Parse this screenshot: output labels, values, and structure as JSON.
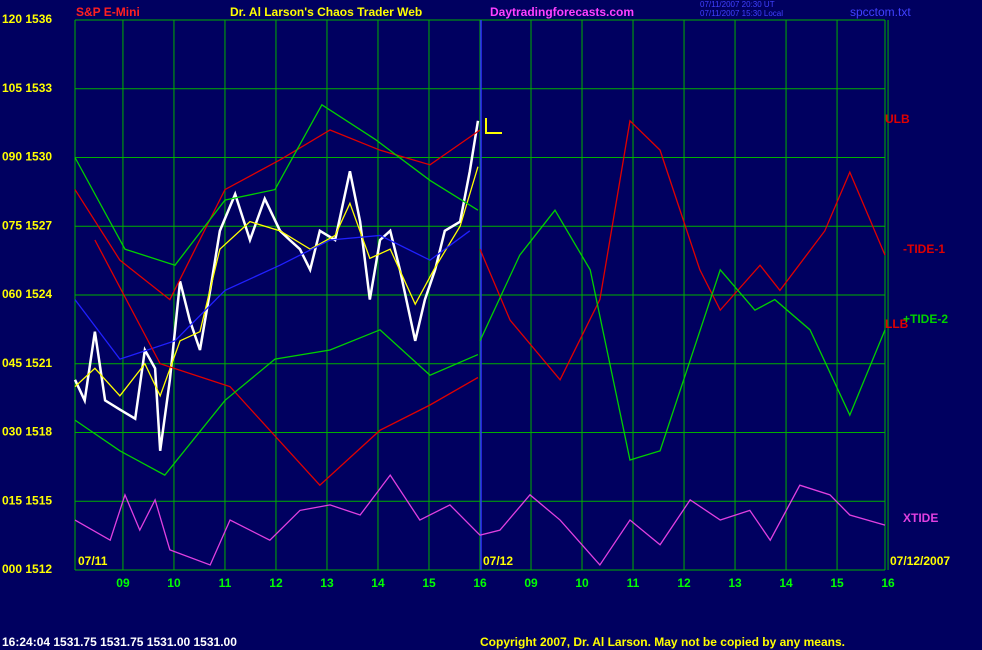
{
  "chart_data": {
    "type": "line",
    "instrument": "S&P E-Mini",
    "title": "Dr. Al Larson's Chaos Trader Web",
    "site": "Daytradingforecasts.com",
    "timestamps": [
      "07/11/2007 20:30 UT",
      "07/11/2007 15:30 Local"
    ],
    "file": "spcctom.txt",
    "date_labels": [
      "07/11",
      "07/12",
      "07/12/2007"
    ],
    "status": "16:24:04  1531.75  1531.75  1531.00  1531.00",
    "copyright": "Copyright 2007, Dr. Al Larson. May not be copied by any means.",
    "grid": true,
    "grid_color": "#00b000",
    "ylim": [
      0,
      120
    ],
    "yticks": [
      {
        "value": 120,
        "label": "120  1536"
      },
      {
        "value": 105,
        "label": "105  1533"
      },
      {
        "value": 90,
        "label": "090  1530"
      },
      {
        "value": 75,
        "label": "075  1527"
      },
      {
        "value": 60,
        "label": "060  1524"
      },
      {
        "value": 45,
        "label": "045  1521"
      },
      {
        "value": 30,
        "label": "030  1518"
      },
      {
        "value": 15,
        "label": "015  1515"
      },
      {
        "value": 0,
        "label": "000  1512"
      }
    ],
    "xlim": [
      0.06,
      15.94
    ],
    "xticks": [
      {
        "value": 1,
        "label": "09"
      },
      {
        "value": 2,
        "label": "10"
      },
      {
        "value": 3,
        "label": "11"
      },
      {
        "value": 4,
        "label": "12"
      },
      {
        "value": 5,
        "label": "13"
      },
      {
        "value": 6,
        "label": "14"
      },
      {
        "value": 7,
        "label": "15"
      },
      {
        "value": 8,
        "label": "16"
      },
      {
        "value": 9,
        "label": "09"
      },
      {
        "value": 10,
        "label": "10"
      },
      {
        "value": 11,
        "label": "11"
      },
      {
        "value": 12,
        "label": "12"
      },
      {
        "value": 13,
        "label": "13"
      },
      {
        "value": 14,
        "label": "14"
      },
      {
        "value": 15,
        "label": "15"
      },
      {
        "value": 16,
        "label": "16"
      }
    ],
    "series": [
      {
        "color": "#ffffff",
        "x": [
          0.06,
          0.25,
          0.45,
          0.65,
          0.94,
          1.24,
          1.43,
          1.63,
          1.73,
          1.92,
          2.12,
          2.31,
          2.51,
          2.71,
          2.9,
          3.2,
          3.49,
          3.78,
          4.08,
          4.27,
          4.47,
          4.67,
          4.86,
          5.16,
          5.45,
          5.65,
          5.84,
          6.04,
          6.24,
          6.43,
          6.73,
          6.92,
          7.12,
          7.31,
          7.61,
          7.8,
          7.96
        ],
        "values": [
          41.5,
          37,
          52,
          37,
          35,
          33,
          48,
          44,
          26,
          41.5,
          63,
          54.5,
          48,
          61,
          74,
          82,
          72,
          81,
          74,
          72,
          70,
          65.5,
          74,
          72,
          87,
          76,
          59,
          72,
          74,
          65.5,
          50,
          59,
          65.5,
          74,
          76,
          87,
          98
        ]
      },
      {
        "color": "#ffff00",
        "x": [
          0.06,
          0.45,
          0.94,
          1.43,
          1.73,
          2.12,
          2.51,
          2.9,
          3.49,
          4.08,
          4.67,
          5.16,
          5.45,
          5.84,
          6.24,
          6.73,
          7.12,
          7.61,
          7.96
        ],
        "values": [
          40,
          44,
          38,
          45,
          38,
          50,
          52,
          70,
          76,
          74,
          70,
          73,
          80,
          68,
          70,
          58,
          66,
          75,
          88
        ]
      },
      {
        "color": "#2020ff",
        "x": [
          0.06,
          0.94,
          2.02,
          3.0,
          4.08,
          5.06,
          6.04,
          7.02,
          7.8
        ],
        "values": [
          59,
          46,
          50,
          61,
          66.5,
          72,
          73,
          67.6,
          74
        ]
      },
      {
        "name": "ULB",
        "color": "#e00000",
        "x": [
          0.06,
          0.94,
          1.92,
          3.0,
          4.08,
          5.06,
          6.04,
          7.02,
          8.0
        ],
        "values": [
          83,
          67.6,
          59,
          83,
          89.5,
          96,
          91.6,
          88.4,
          96
        ]
      },
      {
        "name": "LLB",
        "color": "#e00000",
        "x": [
          0.45,
          1.73,
          3.1,
          4.86,
          6.04,
          7.02,
          7.96
        ],
        "values": [
          72,
          45,
          40,
          18.5,
          30.5,
          36,
          42
        ]
      },
      {
        "color": "#00d000",
        "x": [
          0.06,
          1.04,
          2.02,
          3.0,
          3.98,
          4.9,
          5.94,
          7.02,
          7.96
        ],
        "values": [
          90,
          70,
          66.5,
          80.7,
          83,
          101.5,
          94,
          85,
          78.5
        ]
      },
      {
        "color": "#00d000",
        "x": [
          0.06,
          0.94,
          1.82,
          3.0,
          3.98,
          5.06,
          6.04,
          7.02,
          7.96
        ],
        "values": [
          32.7,
          26,
          20.7,
          37,
          46,
          48,
          52.4,
          42.5,
          47
        ]
      },
      {
        "name": "-TIDE-1",
        "color": "#e00000",
        "x": [
          8.0,
          8.59,
          9.57,
          10.35,
          10.94,
          11.53,
          12.31,
          12.71,
          13.49,
          13.88,
          14.76,
          15.25,
          15.94
        ],
        "values": [
          70,
          54.5,
          41.5,
          59,
          98,
          91.6,
          65.5,
          56.7,
          66.5,
          61,
          74,
          86.8,
          68.7
        ]
      },
      {
        "name": "+TIDE-2",
        "color": "#00d000",
        "x": [
          8.0,
          8.78,
          9.47,
          10.16,
          10.94,
          11.53,
          12.71,
          13.39,
          13.78,
          14.47,
          15.25,
          15.94
        ],
        "values": [
          50,
          68.7,
          78.5,
          65.5,
          24,
          26,
          65.5,
          56.7,
          59,
          52.4,
          33.8,
          52.4
        ]
      },
      {
        "name": "XTIDE",
        "color": "#e040e0",
        "x": [
          0.06,
          0.75,
          1.04,
          1.33,
          1.63,
          1.92,
          2.71,
          3.1,
          3.88,
          4.47,
          5.06,
          5.65,
          6.24,
          6.82,
          7.41,
          8.0,
          8.39,
          8.98,
          9.57,
          10.35,
          10.94,
          11.53,
          12.12,
          12.71,
          13.29,
          13.69,
          14.27,
          14.86,
          15.25,
          15.94
        ],
        "values": [
          10.9,
          6.5,
          16.4,
          8.7,
          15.3,
          4.4,
          1.1,
          10.9,
          6.5,
          13,
          14.2,
          12,
          20.7,
          10.9,
          14.2,
          7.6,
          8.7,
          16.4,
          10.9,
          1.1,
          10.9,
          5.5,
          15.3,
          10.9,
          13,
          6.5,
          18.5,
          16.4,
          12,
          9.8
        ]
      }
    ]
  }
}
